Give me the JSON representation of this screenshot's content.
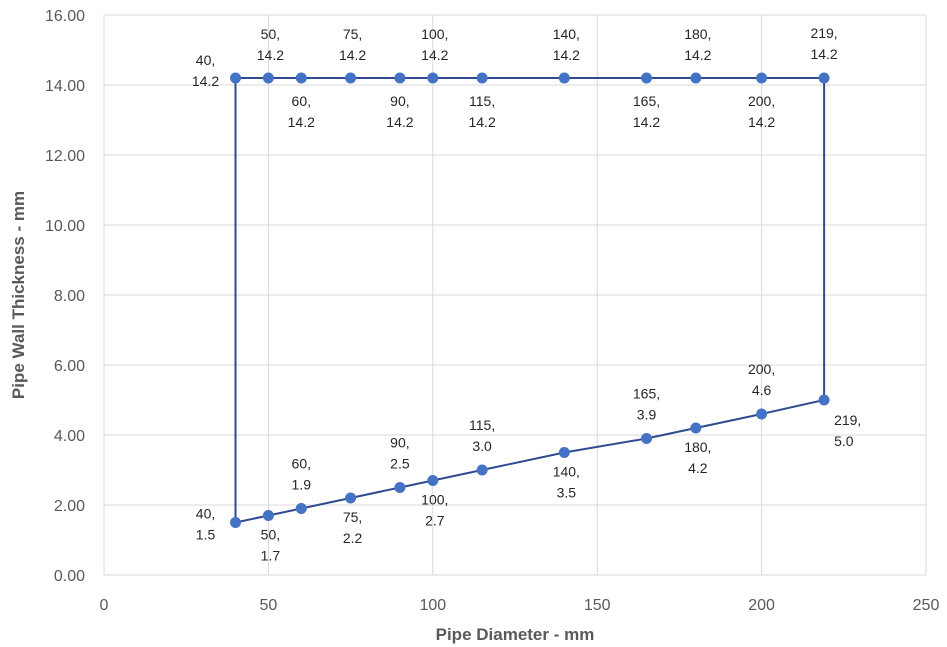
{
  "chart_data": {
    "type": "scatter",
    "title": "",
    "xlabel": "Pipe Diameter - mm",
    "ylabel": "Pipe Wall Thickness - mm",
    "xlim": [
      0,
      250
    ],
    "ylim": [
      0,
      16
    ],
    "x_ticks": [
      "0",
      "50",
      "100",
      "150",
      "200",
      "250"
    ],
    "y_ticks": [
      "0.00",
      "2.00",
      "4.00",
      "6.00",
      "8.00",
      "10.00",
      "12.00",
      "14.00",
      "16.00"
    ],
    "grid": true,
    "legend": "none",
    "line_color": "#2F4B8F",
    "marker_color": "#4472C4",
    "series": [
      {
        "points": [
          {
            "x": 40,
            "y": 1.5,
            "label": [
              "40,",
              "1.5"
            ]
          },
          {
            "x": 50,
            "y": 1.7,
            "label": [
              "50,",
              "1.7"
            ]
          },
          {
            "x": 60,
            "y": 1.9,
            "label": [
              "60,",
              "1.9"
            ]
          },
          {
            "x": 75,
            "y": 2.2,
            "label": [
              "75,",
              "2.2"
            ]
          },
          {
            "x": 90,
            "y": 2.5,
            "label": [
              "90,",
              "2.5"
            ]
          },
          {
            "x": 100,
            "y": 2.7,
            "label": [
              "100,",
              "2.7"
            ]
          },
          {
            "x": 115,
            "y": 3.0,
            "label": [
              "115,",
              "3.0"
            ]
          },
          {
            "x": 140,
            "y": 3.5,
            "label": [
              "140,",
              "3.5"
            ]
          },
          {
            "x": 165,
            "y": 3.9,
            "label": [
              "165,",
              "3.9"
            ]
          },
          {
            "x": 180,
            "y": 4.2,
            "label": [
              "180,",
              "4.2"
            ]
          },
          {
            "x": 200,
            "y": 4.6,
            "label": [
              "200,",
              "4.6"
            ]
          },
          {
            "x": 219,
            "y": 5.0,
            "label": [
              "219,",
              "5.0"
            ]
          },
          {
            "x": 219,
            "y": 14.2,
            "label": [
              "219,",
              "14.2"
            ]
          },
          {
            "x": 200,
            "y": 14.2,
            "label": [
              "200,",
              "14.2"
            ]
          },
          {
            "x": 180,
            "y": 14.2,
            "label": [
              "180,",
              "14.2"
            ]
          },
          {
            "x": 165,
            "y": 14.2,
            "label": [
              "165,",
              "14.2"
            ]
          },
          {
            "x": 140,
            "y": 14.2,
            "label": [
              "140,",
              "14.2"
            ]
          },
          {
            "x": 115,
            "y": 14.2,
            "label": [
              "115,",
              "14.2"
            ]
          },
          {
            "x": 100,
            "y": 14.2,
            "label": [
              "100,",
              "14.2"
            ]
          },
          {
            "x": 90,
            "y": 14.2,
            "label": [
              "90,",
              "14.2"
            ]
          },
          {
            "x": 75,
            "y": 14.2,
            "label": [
              "75,",
              "14.2"
            ]
          },
          {
            "x": 60,
            "y": 14.2,
            "label": [
              "60,",
              "14.2"
            ]
          },
          {
            "x": 50,
            "y": 14.2,
            "label": [
              "50,",
              "14.2"
            ]
          },
          {
            "x": 40,
            "y": 14.2,
            "label": [
              "40,",
              "14.2"
            ]
          },
          {
            "x": 40,
            "y": 1.5
          }
        ]
      }
    ]
  }
}
